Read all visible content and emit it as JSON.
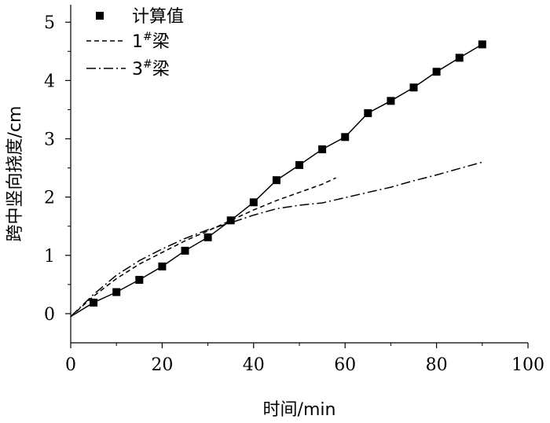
{
  "chart_data": {
    "type": "line",
    "xlabel": "时间/min",
    "ylabel": "跨中竖向挠度/cm",
    "xlim": [
      0,
      100
    ],
    "ylim": [
      -0.5,
      5.3
    ],
    "x_ticks": [
      0,
      20,
      40,
      60,
      80,
      100
    ],
    "y_ticks": [
      0,
      1,
      2,
      3,
      4,
      5
    ],
    "grid": false,
    "legend_position": "top-left",
    "series": [
      {
        "name": "计算值",
        "style": "solid-square-markers",
        "color": "#000000",
        "x": [
          0,
          5,
          10,
          15,
          20,
          25,
          30,
          35,
          40,
          45,
          50,
          55,
          60,
          65,
          70,
          75,
          80,
          85,
          90
        ],
        "y": [
          -0.05,
          0.19,
          0.37,
          0.58,
          0.81,
          1.08,
          1.31,
          1.6,
          1.91,
          2.29,
          2.55,
          2.82,
          3.03,
          3.44,
          3.65,
          3.88,
          4.15,
          4.39,
          4.62
        ]
      },
      {
        "name_main": "1",
        "name_sup": "#",
        "name_suffix": "梁",
        "style": "dashed",
        "color": "#000000",
        "x": [
          0,
          5,
          10,
          15,
          20,
          25,
          30,
          35,
          40,
          45,
          50,
          55,
          58
        ],
        "y": [
          -0.05,
          0.3,
          0.6,
          0.85,
          1.05,
          1.25,
          1.42,
          1.6,
          1.78,
          1.94,
          2.08,
          2.22,
          2.33
        ]
      },
      {
        "name_main": "3",
        "name_sup": "#",
        "name_suffix": "梁",
        "style": "dash-dot",
        "color": "#000000",
        "x": [
          0,
          5,
          10,
          15,
          20,
          25,
          30,
          35,
          40,
          45,
          50,
          55,
          60,
          65,
          70,
          75,
          80,
          85,
          90
        ],
        "y": [
          -0.05,
          0.33,
          0.66,
          0.91,
          1.11,
          1.29,
          1.44,
          1.56,
          1.69,
          1.8,
          1.86,
          1.9,
          1.99,
          2.08,
          2.17,
          2.28,
          2.38,
          2.49,
          2.6
        ]
      }
    ]
  }
}
